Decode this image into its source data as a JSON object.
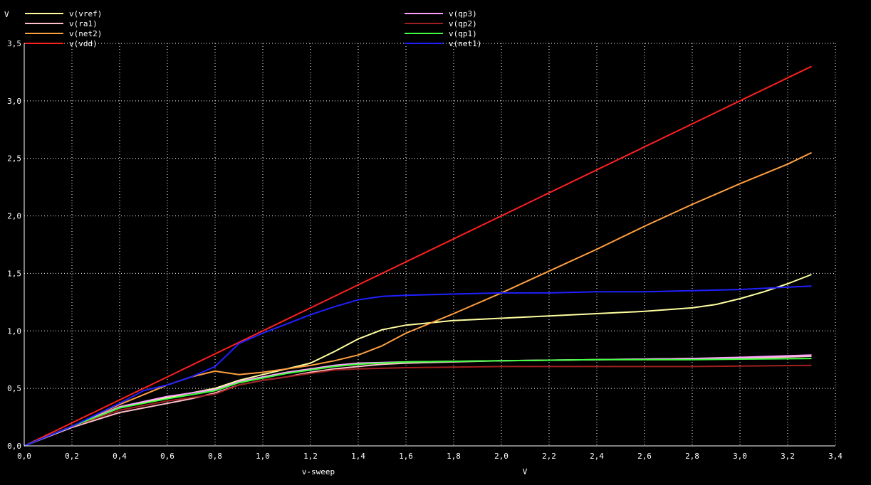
{
  "chart_data": {
    "type": "line",
    "title": "",
    "xlabel": "v-sweep",
    "x_unit": "V",
    "y_unit": "V",
    "xlim": [
      0,
      3.4
    ],
    "ylim": [
      0,
      3.5
    ],
    "x_ticks": [
      "0,0",
      "0,2",
      "0,4",
      "0,6",
      "0,8",
      "1,0",
      "1,2",
      "1,4",
      "1,6",
      "1,8",
      "2,0",
      "2,2",
      "2,4",
      "2,6",
      "2,8",
      "3,0",
      "3,2",
      "3,4"
    ],
    "y_ticks": [
      "0,0",
      "0,5",
      "1,0",
      "1,5",
      "2,0",
      "2,5",
      "3,0",
      "3,5"
    ],
    "grid": true,
    "legend_position": "top",
    "background": "#000000",
    "axis_color": "#ffffff",
    "grid_color": "#ffffff",
    "series": [
      {
        "name": "v(vref)",
        "color": "#ffffa0",
        "points": [
          [
            0,
            0
          ],
          [
            0.2,
            0.17
          ],
          [
            0.4,
            0.33
          ],
          [
            0.6,
            0.42
          ],
          [
            0.8,
            0.5
          ],
          [
            0.9,
            0.57
          ],
          [
            1.0,
            0.62
          ],
          [
            1.1,
            0.67
          ],
          [
            1.2,
            0.72
          ],
          [
            1.3,
            0.82
          ],
          [
            1.4,
            0.93
          ],
          [
            1.5,
            1.01
          ],
          [
            1.6,
            1.05
          ],
          [
            1.7,
            1.07
          ],
          [
            1.8,
            1.09
          ],
          [
            2.0,
            1.11
          ],
          [
            2.2,
            1.13
          ],
          [
            2.4,
            1.15
          ],
          [
            2.6,
            1.17
          ],
          [
            2.8,
            1.2
          ],
          [
            2.9,
            1.23
          ],
          [
            3.0,
            1.28
          ],
          [
            3.1,
            1.34
          ],
          [
            3.2,
            1.41
          ],
          [
            3.3,
            1.49
          ]
        ]
      },
      {
        "name": "v(ra1)",
        "color": "#ffc0cb",
        "points": [
          [
            0,
            0
          ],
          [
            0.2,
            0.16
          ],
          [
            0.4,
            0.29
          ],
          [
            0.6,
            0.37
          ],
          [
            0.7,
            0.41
          ],
          [
            0.8,
            0.46
          ],
          [
            0.9,
            0.53
          ],
          [
            1.0,
            0.57
          ],
          [
            1.1,
            0.6
          ],
          [
            1.2,
            0.64
          ],
          [
            1.3,
            0.67
          ],
          [
            1.4,
            0.69
          ],
          [
            1.5,
            0.71
          ],
          [
            1.6,
            0.72
          ],
          [
            1.8,
            0.73
          ],
          [
            2.0,
            0.74
          ],
          [
            2.4,
            0.75
          ],
          [
            2.8,
            0.76
          ],
          [
            3.0,
            0.76
          ],
          [
            3.3,
            0.78
          ]
        ]
      },
      {
        "name": "v(net2)",
        "color": "#ffa040",
        "points": [
          [
            0,
            0
          ],
          [
            0.2,
            0.17
          ],
          [
            0.4,
            0.36
          ],
          [
            0.6,
            0.53
          ],
          [
            0.7,
            0.6
          ],
          [
            0.8,
            0.65
          ],
          [
            0.9,
            0.62
          ],
          [
            1.0,
            0.64
          ],
          [
            1.1,
            0.67
          ],
          [
            1.2,
            0.7
          ],
          [
            1.3,
            0.74
          ],
          [
            1.4,
            0.79
          ],
          [
            1.5,
            0.87
          ],
          [
            1.6,
            0.98
          ],
          [
            1.8,
            1.15
          ],
          [
            2.0,
            1.33
          ],
          [
            2.2,
            1.52
          ],
          [
            2.4,
            1.71
          ],
          [
            2.6,
            1.91
          ],
          [
            2.8,
            2.1
          ],
          [
            3.0,
            2.28
          ],
          [
            3.2,
            2.45
          ],
          [
            3.3,
            2.55
          ]
        ]
      },
      {
        "name": "v(vdd)",
        "color": "#ff2020",
        "points": [
          [
            0,
            0
          ],
          [
            3.3,
            3.3
          ]
        ]
      },
      {
        "name": "v(qp3)",
        "color": "#ffa0ff",
        "points": [
          [
            0,
            0
          ],
          [
            0.2,
            0.17
          ],
          [
            0.4,
            0.34
          ],
          [
            0.6,
            0.43
          ],
          [
            0.8,
            0.49
          ],
          [
            0.9,
            0.56
          ],
          [
            1.0,
            0.6
          ],
          [
            1.1,
            0.64
          ],
          [
            1.2,
            0.67
          ],
          [
            1.3,
            0.7
          ],
          [
            1.4,
            0.72
          ],
          [
            1.6,
            0.73
          ],
          [
            2.0,
            0.74
          ],
          [
            2.4,
            0.75
          ],
          [
            2.8,
            0.76
          ],
          [
            3.0,
            0.77
          ],
          [
            3.3,
            0.79
          ]
        ]
      },
      {
        "name": "v(qp2)",
        "color": "#a02020",
        "points": [
          [
            0,
            0
          ],
          [
            0.2,
            0.17
          ],
          [
            0.4,
            0.31
          ],
          [
            0.6,
            0.39
          ],
          [
            0.8,
            0.45
          ],
          [
            0.9,
            0.53
          ],
          [
            1.0,
            0.57
          ],
          [
            1.1,
            0.6
          ],
          [
            1.2,
            0.63
          ],
          [
            1.3,
            0.66
          ],
          [
            1.4,
            0.67
          ],
          [
            1.6,
            0.68
          ],
          [
            2.0,
            0.69
          ],
          [
            2.4,
            0.69
          ],
          [
            2.8,
            0.69
          ],
          [
            3.3,
            0.7
          ]
        ]
      },
      {
        "name": "v(qp1)",
        "color": "#40ff40",
        "points": [
          [
            0,
            0
          ],
          [
            0.2,
            0.17
          ],
          [
            0.4,
            0.33
          ],
          [
            0.6,
            0.41
          ],
          [
            0.8,
            0.48
          ],
          [
            0.9,
            0.55
          ],
          [
            1.0,
            0.59
          ],
          [
            1.1,
            0.63
          ],
          [
            1.2,
            0.66
          ],
          [
            1.3,
            0.69
          ],
          [
            1.4,
            0.71
          ],
          [
            1.6,
            0.73
          ],
          [
            2.0,
            0.74
          ],
          [
            2.4,
            0.75
          ],
          [
            2.8,
            0.75
          ],
          [
            3.3,
            0.76
          ]
        ]
      },
      {
        "name": "v(net1)",
        "color": "#2020ff",
        "points": [
          [
            0,
            0
          ],
          [
            0.2,
            0.17
          ],
          [
            0.4,
            0.37
          ],
          [
            0.5,
            0.48
          ],
          [
            0.6,
            0.53
          ],
          [
            0.7,
            0.6
          ],
          [
            0.8,
            0.69
          ],
          [
            0.9,
            0.89
          ],
          [
            1.0,
            0.98
          ],
          [
            1.1,
            1.06
          ],
          [
            1.2,
            1.14
          ],
          [
            1.3,
            1.21
          ],
          [
            1.4,
            1.27
          ],
          [
            1.5,
            1.3
          ],
          [
            1.6,
            1.31
          ],
          [
            1.8,
            1.32
          ],
          [
            2.0,
            1.33
          ],
          [
            2.2,
            1.33
          ],
          [
            2.4,
            1.34
          ],
          [
            2.6,
            1.34
          ],
          [
            2.8,
            1.35
          ],
          [
            3.0,
            1.36
          ],
          [
            3.2,
            1.38
          ],
          [
            3.3,
            1.39
          ]
        ]
      }
    ]
  }
}
